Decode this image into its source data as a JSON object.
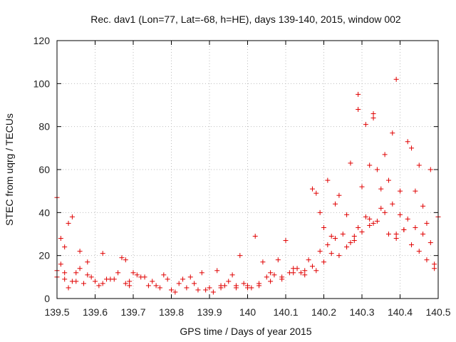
{
  "chart_data": {
    "type": "scatter",
    "title": "Rec. dav1 (Lon=77, Lat=-68, h=HE), days 139-140, 2015, window 002",
    "xlabel": "GPS time / Days of year 2015",
    "ylabel": "STEC from uqrg / TECUs",
    "xlim": [
      139.5,
      140.5
    ],
    "ylim": [
      0,
      120
    ],
    "grid": true,
    "marker": "+",
    "color": "#e00000",
    "x_ticks": [
      139.5,
      139.6,
      139.7,
      139.8,
      139.9,
      140.0,
      140.1,
      140.2,
      140.3,
      140.4,
      140.5
    ],
    "x_tick_labels": [
      "139.5",
      "139.6",
      "139.7",
      "139.8",
      "139.9",
      "140",
      "140.1",
      "140.2",
      "140.3",
      "140.4",
      "140.5"
    ],
    "y_ticks": [
      0,
      20,
      40,
      60,
      80,
      100,
      120
    ],
    "y_tick_labels": [
      "0",
      "20",
      "40",
      "60",
      "80",
      "100",
      "120"
    ],
    "series": [
      {
        "name": "STEC",
        "x": [
          139.5,
          139.51,
          139.52,
          139.53,
          139.54,
          139.55,
          139.56,
          139.58,
          139.6,
          139.62,
          139.65,
          139.67,
          139.68,
          139.69,
          139.7,
          139.72,
          139.75,
          139.78,
          139.8,
          139.83,
          139.85,
          139.88,
          139.9,
          139.92,
          139.94,
          139.96,
          139.98,
          140.0,
          140.02,
          140.04,
          140.06,
          140.08,
          140.1,
          140.12,
          140.14,
          140.16,
          140.17,
          140.18,
          140.19,
          140.2,
          140.21,
          140.22,
          140.23,
          140.24,
          140.26,
          140.27,
          140.28,
          140.29,
          140.29,
          140.3,
          140.31,
          140.32,
          140.32,
          140.33,
          140.33,
          140.34,
          140.35,
          140.36,
          140.37,
          140.38,
          140.39,
          140.39,
          140.4,
          140.41,
          140.42,
          140.43,
          140.44,
          140.45,
          140.46,
          140.47,
          140.48,
          140.49,
          140.5,
          139.5,
          139.51,
          139.52,
          139.53,
          139.55,
          139.57,
          139.59,
          139.61,
          139.63,
          139.66,
          139.68,
          139.71,
          139.73,
          139.76,
          139.79,
          139.81,
          139.84,
          139.86,
          139.89,
          139.91,
          139.93,
          139.95,
          139.97,
          139.99,
          140.01,
          140.03,
          140.05,
          140.07,
          140.09,
          140.11,
          140.13,
          140.15,
          140.17,
          140.19,
          140.21,
          140.23,
          140.25,
          140.27,
          140.29,
          140.31,
          140.33,
          140.35,
          140.37,
          140.39,
          140.41,
          140.43,
          140.45,
          140.47,
          140.49,
          139.5,
          139.52,
          139.54,
          139.56,
          139.58,
          139.62,
          139.64,
          139.69,
          139.74,
          139.77,
          139.82,
          139.87,
          139.93,
          139.97,
          140.0,
          140.03,
          140.06,
          140.09,
          140.12,
          140.15,
          140.18,
          140.2,
          140.22,
          140.24,
          140.26,
          140.28,
          140.3,
          140.32,
          140.34,
          140.36,
          140.38,
          140.4,
          140.42,
          140.44,
          140.46,
          140.48
        ],
        "y": [
          47,
          28,
          24,
          35,
          38,
          12,
          22,
          17,
          8,
          21,
          9,
          19,
          18,
          6,
          12,
          10,
          8,
          11,
          4,
          9,
          10,
          12,
          5,
          13,
          6,
          11,
          20,
          5,
          29,
          17,
          12,
          18,
          27,
          14,
          12,
          18,
          51,
          49,
          40,
          33,
          55,
          29,
          44,
          48,
          39,
          63,
          29,
          95,
          88,
          52,
          81,
          37,
          62,
          86,
          84,
          60,
          51,
          67,
          55,
          77,
          30,
          102,
          50,
          32,
          73,
          70,
          50,
          62,
          43,
          35,
          60,
          16,
          38,
          13,
          16,
          9,
          5,
          8,
          7,
          10,
          6,
          9,
          12,
          7,
          11,
          10,
          6,
          9,
          3,
          5,
          7,
          4,
          3,
          5,
          8,
          6,
          7,
          5,
          6,
          10,
          11,
          9,
          12,
          14,
          13,
          15,
          22,
          25,
          28,
          30,
          26,
          33,
          38,
          35,
          42,
          30,
          28,
          32,
          25,
          22,
          18,
          14,
          10,
          12,
          8,
          14,
          11,
          7,
          9,
          8,
          6,
          5,
          7,
          4,
          6,
          5,
          6,
          7,
          8,
          10,
          12,
          11,
          13,
          17,
          21,
          20,
          24,
          27,
          31,
          34,
          36,
          40,
          44,
          39,
          37,
          33,
          30,
          26
        ]
      }
    ]
  }
}
